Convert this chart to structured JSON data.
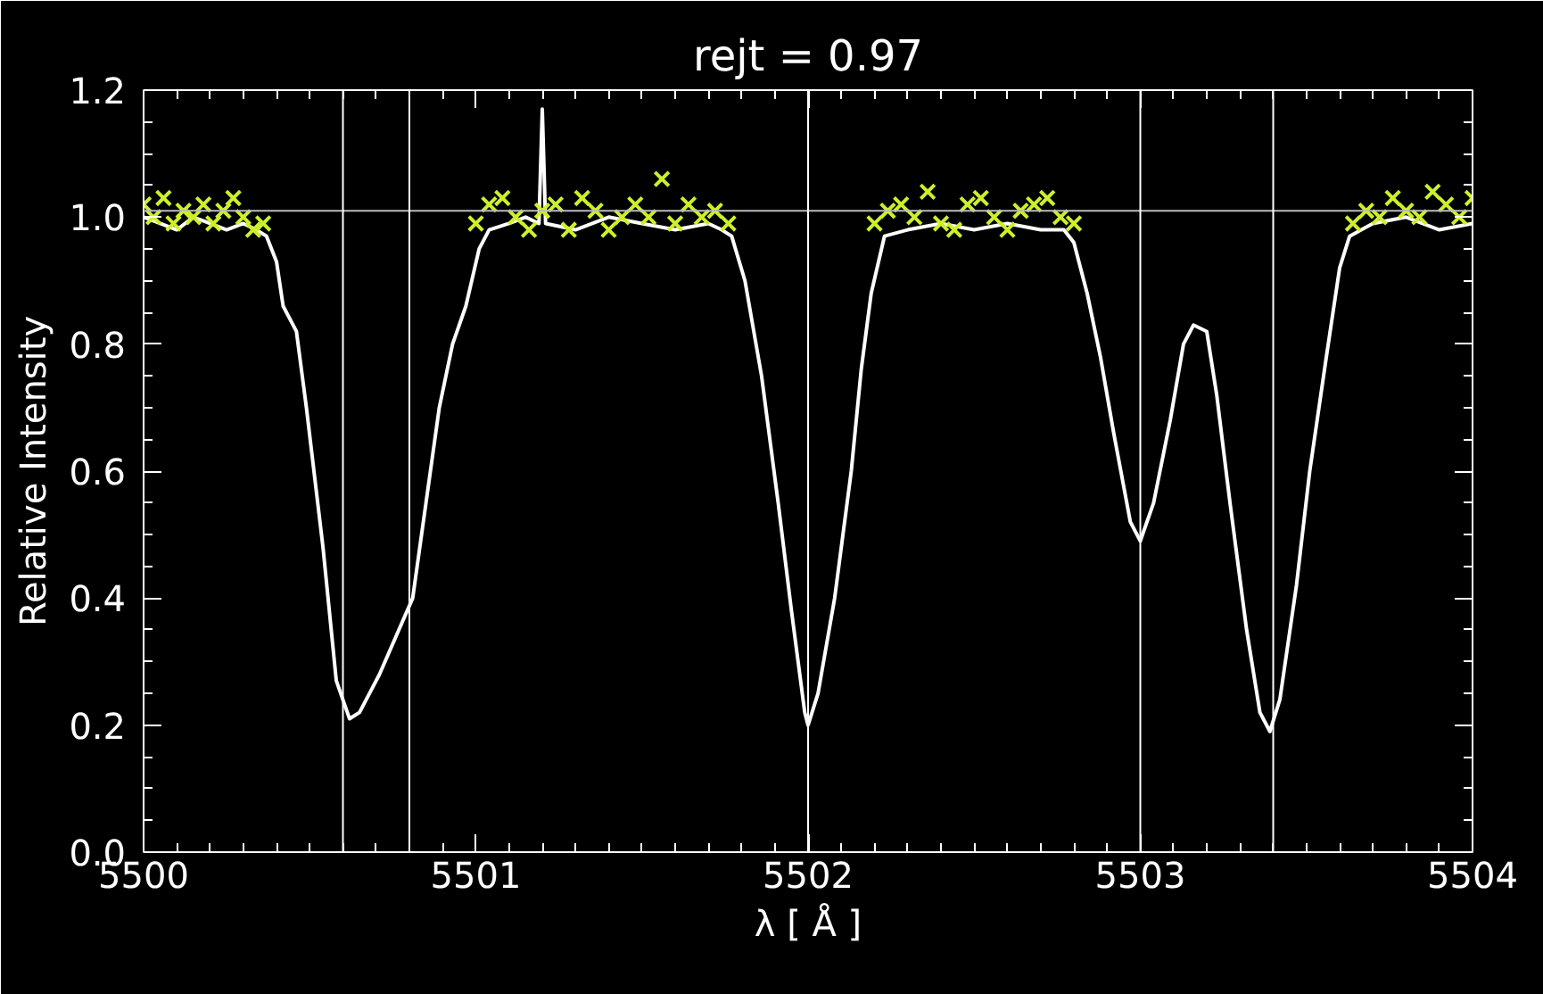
{
  "chart_data": {
    "type": "line",
    "title": "rejt = 0.97",
    "xlabel": "λ [ Å ]",
    "ylabel": "Relative Intensity",
    "xlim": [
      5500,
      5504
    ],
    "ylim": [
      0,
      1.2
    ],
    "xticks": [
      5500,
      5501,
      5502,
      5503,
      5504
    ],
    "yticks": [
      {
        "value": 0,
        "label": "0.0"
      },
      0.2,
      0.4,
      0.6,
      0.8,
      {
        "value": 1,
        "label": "1.0"
      },
      1.2
    ],
    "grid": false,
    "line_style": "solid",
    "series": [
      {
        "color": "#ffffff",
        "x": [
          5500.0,
          5500.05,
          5500.1,
          5500.15,
          5500.2,
          5500.25,
          5500.3,
          5500.34,
          5500.37,
          5500.4,
          5500.42,
          5500.46,
          5500.49,
          5500.54,
          5500.58,
          5500.62,
          5500.65,
          5500.71,
          5500.76,
          5500.81,
          5500.85,
          5500.89,
          5500.93,
          5500.97,
          5501.01,
          5501.04,
          5501.1,
          5501.15,
          5501.19,
          5501.2,
          5501.21,
          5501.3,
          5501.4,
          5501.5,
          5501.6,
          5501.7,
          5501.74,
          5501.77,
          5501.81,
          5501.86,
          5501.91,
          5501.95,
          5501.99,
          5502.0,
          5502.03,
          5502.08,
          5502.13,
          5502.16,
          5502.19,
          5502.23,
          5502.3,
          5502.4,
          5502.5,
          5502.6,
          5502.7,
          5502.77,
          5502.8,
          5502.84,
          5502.88,
          5502.92,
          5502.97,
          5503.0,
          5503.04,
          5503.09,
          5503.13,
          5503.16,
          5503.2,
          5503.23,
          5503.27,
          5503.32,
          5503.36,
          5503.39,
          5503.42,
          5503.47,
          5503.51,
          5503.56,
          5503.6,
          5503.63,
          5503.7,
          5503.8,
          5503.9,
          5504.0
        ],
        "values": [
          1.0,
          0.99,
          0.98,
          1.0,
          0.99,
          0.98,
          0.99,
          0.98,
          0.97,
          0.93,
          0.86,
          0.82,
          0.7,
          0.48,
          0.27,
          0.21,
          0.22,
          0.28,
          0.34,
          0.4,
          0.55,
          0.7,
          0.8,
          0.86,
          0.95,
          0.98,
          0.99,
          1.0,
          0.99,
          1.17,
          0.99,
          0.98,
          1.0,
          0.99,
          0.98,
          0.99,
          0.98,
          0.97,
          0.9,
          0.75,
          0.55,
          0.38,
          0.22,
          0.2,
          0.25,
          0.4,
          0.6,
          0.76,
          0.88,
          0.97,
          0.98,
          0.99,
          0.98,
          0.99,
          0.98,
          0.98,
          0.96,
          0.88,
          0.78,
          0.66,
          0.52,
          0.49,
          0.55,
          0.68,
          0.8,
          0.83,
          0.82,
          0.72,
          0.55,
          0.35,
          0.22,
          0.19,
          0.24,
          0.42,
          0.6,
          0.78,
          0.92,
          0.97,
          0.99,
          1.0,
          0.98,
          0.99
        ]
      },
      {
        "type": "scatter",
        "color": "#ccf02a",
        "marker": "cross",
        "x": [
          5500.0,
          5500.03,
          5500.06,
          5500.09,
          5500.12,
          5500.15,
          5500.18,
          5500.21,
          5500.24,
          5500.27,
          5500.3,
          5500.33,
          5500.36
        ],
        "values": [
          1.02,
          1.0,
          1.03,
          0.99,
          1.01,
          1.0,
          1.02,
          0.99,
          1.01,
          1.03,
          1.0,
          0.98,
          0.99
        ]
      },
      {
        "type": "scatter",
        "color": "#ccf02a",
        "marker": "cross",
        "x": [
          5501.0,
          5501.04,
          5501.08,
          5501.12,
          5501.16,
          5501.2,
          5501.24,
          5501.28,
          5501.32,
          5501.36,
          5501.4,
          5501.44,
          5501.48,
          5501.52,
          5501.56,
          5501.6,
          5501.64,
          5501.68,
          5501.72,
          5501.76
        ],
        "values": [
          0.99,
          1.02,
          1.03,
          1.0,
          0.98,
          1.01,
          1.02,
          0.98,
          1.03,
          1.01,
          0.98,
          1.0,
          1.02,
          1.0,
          1.06,
          0.99,
          1.02,
          1.0,
          1.01,
          0.99
        ]
      },
      {
        "type": "scatter",
        "color": "#ccf02a",
        "marker": "cross",
        "x": [
          5502.2,
          5502.24,
          5502.28,
          5502.32,
          5502.36,
          5502.4,
          5502.44,
          5502.48,
          5502.52,
          5502.56,
          5502.6,
          5502.64,
          5502.68,
          5502.72,
          5502.76,
          5502.8
        ],
        "values": [
          0.99,
          1.01,
          1.02,
          1.0,
          1.04,
          0.99,
          0.98,
          1.02,
          1.03,
          1.0,
          0.98,
          1.01,
          1.02,
          1.03,
          1.0,
          0.99
        ]
      },
      {
        "type": "scatter",
        "color": "#ccf02a",
        "marker": "cross",
        "x": [
          5503.64,
          5503.68,
          5503.72,
          5503.76,
          5503.8,
          5503.84,
          5503.88,
          5503.92,
          5503.96,
          5504.0
        ],
        "values": [
          0.99,
          1.01,
          1.0,
          1.03,
          1.01,
          1.0,
          1.04,
          1.02,
          1.0,
          1.03
        ]
      }
    ],
    "ref_lines": [
      {
        "axis": "y",
        "value": 1.01,
        "color": "#bbbbbb"
      },
      {
        "axis": "x",
        "value": 5500.6,
        "color": "#ffffff"
      },
      {
        "axis": "x",
        "value": 5500.8,
        "color": "#ffffff"
      },
      {
        "axis": "x",
        "value": 5502.0,
        "color": "#ffffff"
      },
      {
        "axis": "x",
        "value": 5503.0,
        "color": "#ffffff"
      },
      {
        "axis": "x",
        "value": 5503.4,
        "color": "#ffffff"
      }
    ]
  }
}
